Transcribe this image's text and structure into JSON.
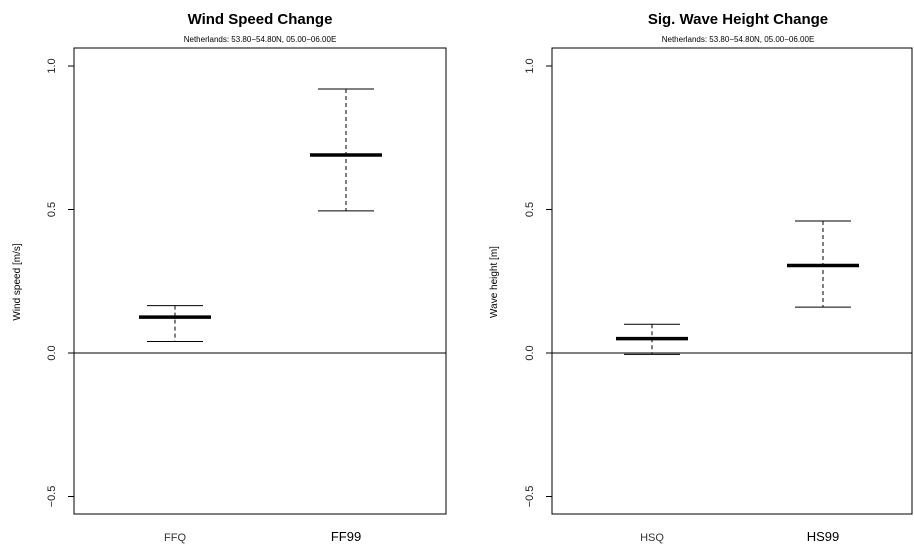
{
  "chart_data": [
    {
      "type": "boxplot",
      "title": "Wind Speed Change",
      "subtitle": "Netherlands: 53.80−54.80N, 05.00−06.00E",
      "ylabel": "Wind speed [m/s]",
      "xlabel": "",
      "ylim": [
        -0.55,
        1.1
      ],
      "yticks": [
        "−0.5",
        "0.0",
        "0.5",
        "1.0"
      ],
      "ytick_values": [
        -0.5,
        0.0,
        0.5,
        1.0
      ],
      "reference_line": 0.0,
      "grid": false,
      "categories": [
        "FFQ",
        "FF99"
      ],
      "values": [
        {
          "low": 0.04,
          "median": 0.125,
          "high": 0.165
        },
        {
          "low": 0.495,
          "median": 0.69,
          "high": 0.92
        }
      ]
    },
    {
      "type": "boxplot",
      "title": "Sig. Wave Height Change",
      "subtitle": "Netherlands: 53.80−54.80N, 05.00−06.00E",
      "ylabel": "Wave height [m]",
      "xlabel": "",
      "ylim": [
        -0.55,
        1.1
      ],
      "yticks": [
        "−0.5",
        "0.0",
        "0.5",
        "1.0"
      ],
      "ytick_values": [
        -0.5,
        0.0,
        0.5,
        1.0
      ],
      "reference_line": 0.0,
      "grid": false,
      "categories": [
        "HSQ",
        "HS99"
      ],
      "values": [
        {
          "low": -0.005,
          "median": 0.05,
          "high": 0.1
        },
        {
          "low": 0.16,
          "median": 0.305,
          "high": 0.46
        }
      ]
    }
  ]
}
